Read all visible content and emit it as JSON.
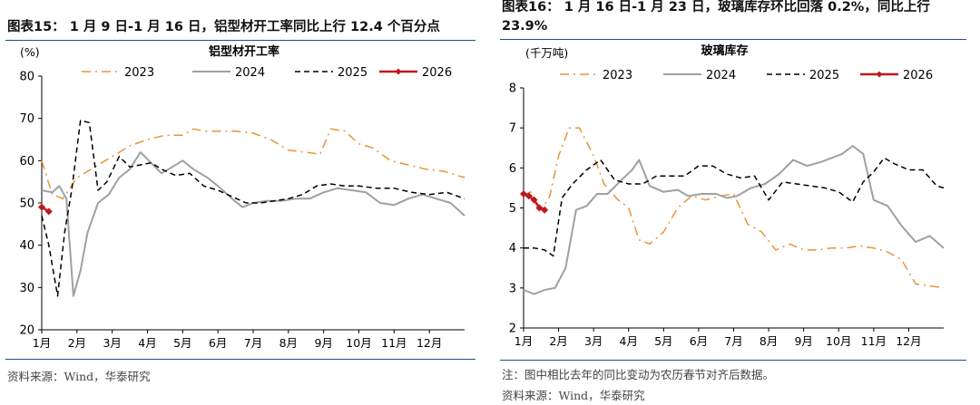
{
  "left_panel": {
    "heading": "图表15： 1 月 9 日-1 月 16 日，铝型材开工率同比上行 12.4 个百分点",
    "source": "资料来源：Wind，华泰研究"
  },
  "right_panel": {
    "heading": "图表16： 1 月 16 日-1 月 23 日，玻璃库存环比回落 0.2%，同比上行 23.9%",
    "note": "注：图中相比去年的同比变动为农历春节对齐后数据。",
    "source": "资料来源：Wind，华泰研究"
  },
  "colors": {
    "s2023": "#e8943c",
    "s2024": "#a0a0a0",
    "s2025": "#000000",
    "s2026": "#c0171d",
    "rule": "#1f4e9a"
  },
  "chart_data": [
    {
      "type": "line",
      "title": "铝型材开工率",
      "ylabel": "(%)",
      "xlabel": "",
      "ylim": [
        20,
        80
      ],
      "yticks": [
        20,
        30,
        40,
        50,
        60,
        70,
        80
      ],
      "xlim": [
        0,
        12
      ],
      "xticks": [
        0,
        1,
        2,
        3,
        4,
        5,
        6,
        7,
        8,
        9,
        10,
        11
      ],
      "xtick_labels": [
        "1月",
        "2月",
        "3月",
        "4月",
        "5月",
        "6月",
        "7月",
        "8月",
        "9月",
        "10月",
        "11月",
        "12月"
      ],
      "legend_position": "top",
      "series": [
        {
          "name": "2023",
          "style": "dashdot",
          "color": "#e8943c",
          "x": [
            0,
            0.15,
            0.3,
            0.6,
            1.0,
            1.4,
            2.0,
            2.5,
            3.0,
            3.5,
            4.0,
            4.3,
            4.6,
            5.0,
            5.5,
            6.0,
            6.5,
            7.0,
            7.5,
            7.9,
            8.2,
            8.6,
            9.0,
            9.4,
            9.9,
            10.4,
            10.9,
            11.4,
            12.0
          ],
          "y": [
            60,
            56,
            52,
            51,
            56,
            58,
            61,
            63.5,
            65,
            66,
            66,
            67.5,
            67,
            67,
            67,
            66.5,
            65,
            62.5,
            62,
            61.5,
            67.5,
            67,
            64,
            63,
            60,
            59,
            58,
            57.5,
            56
          ]
        },
        {
          "name": "2024",
          "style": "solid",
          "color": "#a0a0a0",
          "x": [
            0,
            0.3,
            0.5,
            0.7,
            0.9,
            1.1,
            1.3,
            1.6,
            1.9,
            2.2,
            2.5,
            2.8,
            3.1,
            3.4,
            3.7,
            4.0,
            4.3,
            4.7,
            5.0,
            5.4,
            5.7,
            6.0,
            6.4,
            6.8,
            7.2,
            7.6,
            8.0,
            8.4,
            8.8,
            9.2,
            9.6,
            10.0,
            10.4,
            10.8,
            11.2,
            11.6,
            12.0
          ],
          "y": [
            53,
            52.5,
            54,
            51,
            28,
            34,
            43,
            50,
            52,
            56,
            58,
            62,
            59.5,
            57,
            58.5,
            60,
            58,
            56,
            54,
            51,
            49,
            50,
            50.5,
            50.5,
            51,
            51,
            52.5,
            53.5,
            53,
            52.5,
            50,
            49.5,
            51,
            52,
            51,
            50,
            47
          ]
        },
        {
          "name": "2025",
          "style": "dashed",
          "color": "#000000",
          "x": [
            0,
            0.2,
            0.45,
            0.65,
            0.85,
            1.1,
            1.35,
            1.6,
            1.85,
            2.2,
            2.5,
            2.8,
            3.1,
            3.4,
            3.8,
            4.2,
            4.6,
            5.0,
            5.4,
            5.8,
            6.2,
            6.6,
            7.0,
            7.4,
            7.8,
            8.2,
            8.6,
            9.0,
            9.5,
            10.0,
            10.5,
            11.0,
            11.5,
            12.0
          ],
          "y": [
            47,
            40,
            28,
            43,
            53,
            69.5,
            69,
            53,
            55,
            61,
            58.5,
            59,
            59.5,
            58,
            56.5,
            57,
            54,
            53,
            51.5,
            50,
            50,
            50.5,
            51,
            52,
            54,
            54.5,
            54,
            54,
            53.5,
            53.5,
            52.5,
            52,
            52.5,
            51
          ]
        },
        {
          "name": "2026",
          "style": "solid-marker",
          "color": "#c0171d",
          "x": [
            0,
            0.2
          ],
          "y": [
            49,
            48
          ]
        }
      ]
    },
    {
      "type": "line",
      "title": "玻璃库存",
      "ylabel": "(千万吨)",
      "xlabel": "",
      "ylim": [
        2,
        8
      ],
      "yticks": [
        2,
        3,
        4,
        5,
        6,
        7,
        8
      ],
      "xlim": [
        0,
        12
      ],
      "xticks": [
        0,
        1,
        2,
        3,
        4,
        5,
        6,
        7,
        8,
        9,
        10,
        11
      ],
      "xtick_labels": [
        "1月",
        "2月",
        "3月",
        "4月",
        "5月",
        "6月",
        "7月",
        "8月",
        "9月",
        "10月",
        "11月",
        "12月"
      ],
      "legend_position": "top",
      "series": [
        {
          "name": "2023",
          "style": "dashdot",
          "color": "#e8943c",
          "x": [
            0,
            0.2,
            0.4,
            0.55,
            0.75,
            1.0,
            1.3,
            1.6,
            2.0,
            2.3,
            2.7,
            3.0,
            3.3,
            3.6,
            4.0,
            4.4,
            4.8,
            5.2,
            5.6,
            6.0,
            6.4,
            6.8,
            7.2,
            7.6,
            8.0,
            8.4,
            8.8,
            9.2,
            9.6,
            10.0,
            10.4,
            10.8,
            11.2,
            11.6,
            12.0
          ],
          "y": [
            5.3,
            5.4,
            5.1,
            5.0,
            5.3,
            6.3,
            7.0,
            7.0,
            6.3,
            5.6,
            5.2,
            5.0,
            4.2,
            4.1,
            4.4,
            5.0,
            5.3,
            5.2,
            5.3,
            5.35,
            4.6,
            4.4,
            3.95,
            4.1,
            3.95,
            3.95,
            4.0,
            4.0,
            4.05,
            4.0,
            3.9,
            3.7,
            3.1,
            3.05,
            3.0
          ]
        },
        {
          "name": "2024",
          "style": "solid",
          "color": "#a0a0a0",
          "x": [
            0,
            0.3,
            0.6,
            0.9,
            1.2,
            1.5,
            1.8,
            2.1,
            2.4,
            2.8,
            3.1,
            3.3,
            3.6,
            4.0,
            4.4,
            4.7,
            5.1,
            5.5,
            5.8,
            6.1,
            6.5,
            6.9,
            7.3,
            7.7,
            8.1,
            8.5,
            8.8,
            9.1,
            9.4,
            9.7,
            10.0,
            10.4,
            10.8,
            11.2,
            11.6,
            12.0
          ],
          "y": [
            2.95,
            2.85,
            2.95,
            3.0,
            3.5,
            4.95,
            5.05,
            5.35,
            5.35,
            5.7,
            5.95,
            6.2,
            5.55,
            5.4,
            5.45,
            5.3,
            5.35,
            5.35,
            5.25,
            5.3,
            5.5,
            5.6,
            5.85,
            6.2,
            6.05,
            6.15,
            6.25,
            6.35,
            6.55,
            6.35,
            5.2,
            5.05,
            4.55,
            4.15,
            4.3,
            4.0
          ]
        },
        {
          "name": "2025",
          "style": "dashed",
          "color": "#000000",
          "x": [
            0,
            0.3,
            0.6,
            0.85,
            1.1,
            1.4,
            1.8,
            2.2,
            2.6,
            3.0,
            3.4,
            3.8,
            4.2,
            4.6,
            5.0,
            5.4,
            5.8,
            6.2,
            6.6,
            7.0,
            7.4,
            7.8,
            8.2,
            8.6,
            9.0,
            9.4,
            9.7,
            10.0,
            10.3,
            10.6,
            11.0,
            11.4,
            11.8,
            12.0
          ],
          "y": [
            4.0,
            4.0,
            3.95,
            3.8,
            5.25,
            5.6,
            5.95,
            6.2,
            5.7,
            5.6,
            5.6,
            5.8,
            5.8,
            5.8,
            6.05,
            6.05,
            5.85,
            5.75,
            5.8,
            5.2,
            5.65,
            5.6,
            5.55,
            5.5,
            5.4,
            5.15,
            5.65,
            5.9,
            6.25,
            6.1,
            5.95,
            5.95,
            5.55,
            5.5
          ]
        },
        {
          "name": "2026",
          "style": "solid-marker",
          "color": "#c0171d",
          "x": [
            0,
            0.15,
            0.3,
            0.45,
            0.6
          ],
          "y": [
            5.35,
            5.3,
            5.2,
            5.0,
            4.95
          ]
        }
      ]
    }
  ]
}
